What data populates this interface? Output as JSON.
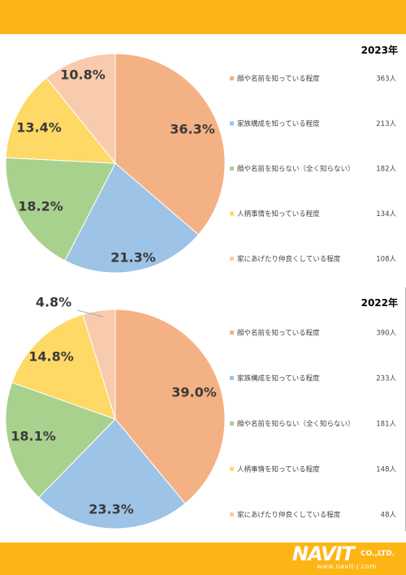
{
  "chart_data": [
    {
      "type": "pie",
      "title": "2023年",
      "categories": [
        "顔や名前を知っている程度",
        "家族構成を知っている程度",
        "顔や名前を知らない（全く知らない）",
        "人柄事情を知っている程度",
        "家にあげたり仲良くしている程度"
      ],
      "values": [
        36.3,
        21.3,
        18.2,
        13.4,
        10.8
      ],
      "labels": [
        "36.3%",
        "21.3%",
        "18.2%",
        "13.4%",
        "10.8%"
      ],
      "counts": [
        "363人",
        "213人",
        "182人",
        "134人",
        "108人"
      ],
      "colors": [
        "#F4B183",
        "#9DC3E6",
        "#A9D18E",
        "#FFD966",
        "#F8CBAD"
      ],
      "legend_position": "right"
    },
    {
      "type": "pie",
      "title": "2022年",
      "categories": [
        "顔や名前を知っている程度",
        "家族構成を知っている程度",
        "顔や名前を知らない（全く知らない）",
        "人柄事情を知っている程度",
        "家にあげたり仲良くしている程度"
      ],
      "values": [
        39.0,
        23.3,
        18.1,
        14.8,
        4.8
      ],
      "labels": [
        "39.0%",
        "23.3%",
        "18.1%",
        "14.8%",
        "4.8%"
      ],
      "counts": [
        "390人",
        "233人",
        "181人",
        "148人",
        "48人"
      ],
      "colors": [
        "#F4B183",
        "#9DC3E6",
        "#A9D18E",
        "#FFD966",
        "#F8CBAD"
      ],
      "legend_position": "right"
    }
  ],
  "logo": {
    "name": "NAVIT",
    "suffix": "CO.,LTD.",
    "url": "www.navit-j.com"
  }
}
